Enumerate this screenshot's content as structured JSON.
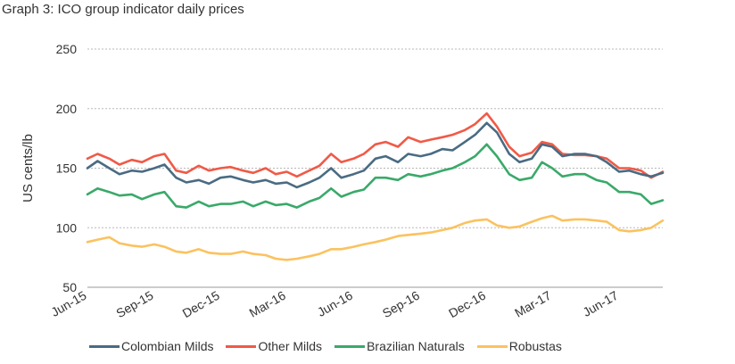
{
  "chart_data": {
    "type": "line",
    "title": "Graph 3: ICO group indicator daily prices",
    "xlabel": "",
    "ylabel": "US cents/lb",
    "ylim": [
      50,
      250
    ],
    "yticks": [
      50,
      100,
      150,
      200,
      250
    ],
    "grid": true,
    "legend_position": "bottom",
    "xlim": [
      "2015-06-01",
      "2017-07-31"
    ],
    "xticks": [
      {
        "date": "2015-06-01",
        "label": "Jun-15"
      },
      {
        "date": "2015-09-01",
        "label": "Sep-15"
      },
      {
        "date": "2015-12-01",
        "label": "Dec-15"
      },
      {
        "date": "2016-03-01",
        "label": "Mar-16"
      },
      {
        "date": "2016-06-01",
        "label": "Jun-16"
      },
      {
        "date": "2016-09-01",
        "label": "Sep-16"
      },
      {
        "date": "2016-12-01",
        "label": "Dec-16"
      },
      {
        "date": "2017-03-01",
        "label": "Mar-17"
      },
      {
        "date": "2017-06-01",
        "label": "Jun-17"
      }
    ],
    "x": [
      "2015-06-01",
      "2015-06-15",
      "2015-07-01",
      "2015-07-15",
      "2015-08-01",
      "2015-08-15",
      "2015-09-01",
      "2015-09-15",
      "2015-10-01",
      "2015-10-15",
      "2015-11-01",
      "2015-11-15",
      "2015-12-01",
      "2015-12-15",
      "2016-01-01",
      "2016-01-15",
      "2016-02-01",
      "2016-02-15",
      "2016-03-01",
      "2016-03-15",
      "2016-04-01",
      "2016-04-15",
      "2016-05-01",
      "2016-05-15",
      "2016-06-01",
      "2016-06-15",
      "2016-07-01",
      "2016-07-15",
      "2016-08-01",
      "2016-08-15",
      "2016-09-01",
      "2016-09-15",
      "2016-10-01",
      "2016-10-15",
      "2016-11-01",
      "2016-11-15",
      "2016-12-01",
      "2016-12-15",
      "2017-01-01",
      "2017-01-15",
      "2017-02-01",
      "2017-02-15",
      "2017-03-01",
      "2017-03-15",
      "2017-04-01",
      "2017-04-15",
      "2017-05-01",
      "2017-05-15",
      "2017-06-01",
      "2017-06-15",
      "2017-07-01",
      "2017-07-15",
      "2017-07-31"
    ],
    "series": [
      {
        "name": "Colombian Milds",
        "color": "#4a6b82",
        "values": [
          150,
          156,
          150,
          145,
          148,
          147,
          150,
          153,
          142,
          138,
          140,
          137,
          142,
          143,
          140,
          138,
          140,
          137,
          138,
          134,
          138,
          142,
          150,
          142,
          145,
          148,
          158,
          160,
          155,
          162,
          160,
          162,
          166,
          165,
          172,
          178,
          188,
          180,
          162,
          155,
          158,
          170,
          168,
          160,
          162,
          162,
          160,
          155,
          147,
          148,
          145,
          143,
          146
        ]
      },
      {
        "name": "Other Milds",
        "color": "#f05a47",
        "values": [
          158,
          162,
          158,
          153,
          157,
          155,
          160,
          162,
          148,
          146,
          152,
          148,
          150,
          151,
          148,
          146,
          150,
          145,
          147,
          143,
          148,
          152,
          162,
          155,
          158,
          162,
          170,
          172,
          168,
          176,
          172,
          174,
          176,
          178,
          182,
          187,
          196,
          185,
          168,
          160,
          163,
          172,
          170,
          162,
          161,
          161,
          160,
          158,
          150,
          150,
          148,
          142,
          147
        ]
      },
      {
        "name": "Brazilian Naturals",
        "color": "#3aa96a",
        "values": [
          128,
          133,
          130,
          127,
          128,
          124,
          128,
          130,
          118,
          117,
          122,
          118,
          120,
          120,
          122,
          118,
          122,
          119,
          120,
          117,
          122,
          125,
          133,
          126,
          130,
          132,
          142,
          142,
          140,
          145,
          143,
          145,
          148,
          150,
          155,
          160,
          170,
          160,
          145,
          140,
          142,
          155,
          150,
          143,
          145,
          145,
          140,
          138,
          130,
          130,
          128,
          120,
          123
        ]
      },
      {
        "name": "Robustas",
        "color": "#fbc25f",
        "values": [
          88,
          90,
          92,
          87,
          85,
          84,
          86,
          84,
          80,
          79,
          82,
          79,
          78,
          78,
          80,
          78,
          77,
          74,
          73,
          74,
          76,
          78,
          82,
          82,
          84,
          86,
          88,
          90,
          93,
          94,
          95,
          96,
          98,
          100,
          104,
          106,
          107,
          102,
          100,
          101,
          105,
          108,
          110,
          106,
          107,
          107,
          106,
          105,
          98,
          97,
          98,
          100,
          106
        ]
      }
    ]
  }
}
